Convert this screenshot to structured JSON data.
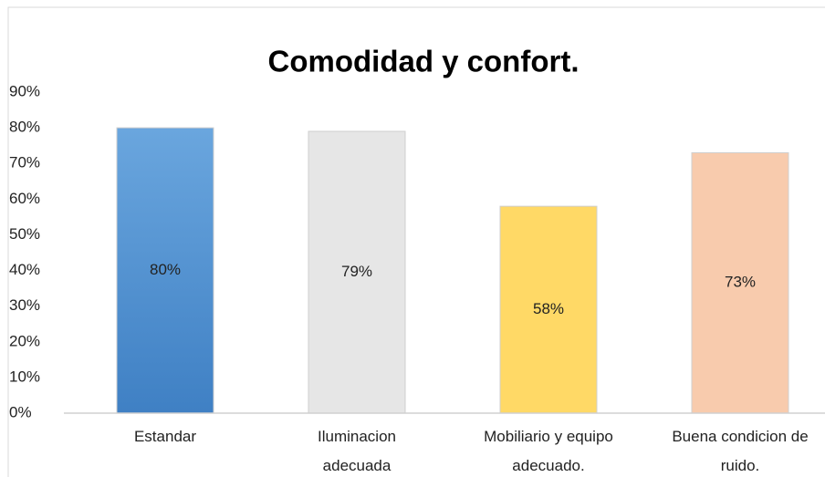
{
  "chart_data": {
    "type": "bar",
    "title": "Comodidad y confort.",
    "categories": [
      "Estandar",
      "Iluminacion adecuada",
      "Mobiliario y equipo adecuado.",
      "Buena condicion de ruido."
    ],
    "values": [
      80,
      79,
      58,
      73
    ],
    "value_labels": [
      "80%",
      "79%",
      "58%",
      "73%"
    ],
    "colors": [
      "#4f8fd0",
      "#e6e6e6",
      "#ffd966",
      "#f8cbad"
    ],
    "ylim": [
      0,
      90
    ],
    "yticks": [
      {
        "value": 0,
        "label": "0%"
      },
      {
        "value": 10,
        "label": "10%"
      },
      {
        "value": 20,
        "label": "20%"
      },
      {
        "value": 30,
        "label": "30%"
      },
      {
        "value": 40,
        "label": "40%"
      },
      {
        "value": 50,
        "label": "50%"
      },
      {
        "value": 60,
        "label": "60%"
      },
      {
        "value": 70,
        "label": "70%"
      },
      {
        "value": 80,
        "label": "80%"
      },
      {
        "value": 90,
        "label": "90%"
      }
    ],
    "grid": false
  }
}
